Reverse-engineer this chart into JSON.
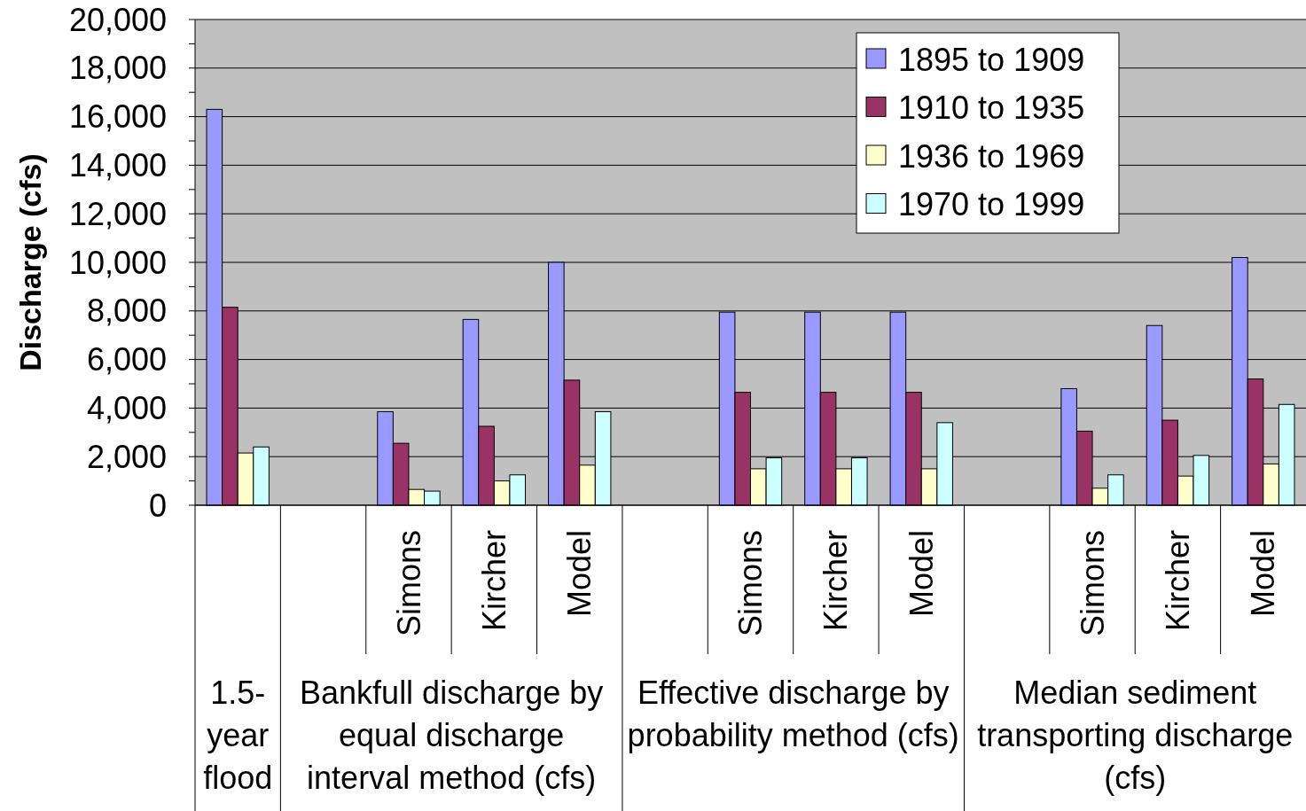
{
  "chart_data": {
    "type": "bar",
    "ylabel": "Discharge (cfs)",
    "categories": [
      null,
      null,
      "Simons",
      "Kircher",
      "Model",
      null,
      "Simons",
      "Kircher",
      "Model",
      null,
      "Simons",
      "Kircher",
      "Model"
    ],
    "annotations": [
      "1.5-year flood",
      "Bankfull discharge by equal discharge interval method (cfs)",
      "Effective discharge by probability method (cfs)",
      "Median sediment transporting discharge (cfs)"
    ],
    "series": [
      {
        "name": "1895 to 1909",
        "color": "#9999ff",
        "values": [
          16300,
          null,
          3850,
          7650,
          10000,
          null,
          7950,
          7950,
          7950,
          null,
          4800,
          7400,
          10200
        ]
      },
      {
        "name": "1910 to 1935",
        "color": "#993366",
        "values": [
          8150,
          null,
          2550,
          3250,
          5150,
          null,
          4650,
          4650,
          4650,
          null,
          3050,
          3500,
          5200
        ]
      },
      {
        "name": "1936 to 1969",
        "color": "#ffffcc",
        "values": [
          2150,
          null,
          650,
          1000,
          1650,
          null,
          1500,
          1500,
          1500,
          null,
          700,
          1200,
          1700
        ]
      },
      {
        "name": "1970 to 1999",
        "color": "#ccffff",
        "values": [
          2400,
          null,
          580,
          1250,
          3850,
          null,
          1950,
          1950,
          3400,
          null,
          1250,
          2050,
          4150
        ]
      }
    ],
    "ylim": [
      0,
      20000
    ],
    "yticks": [
      {
        "value": 0,
        "label": "0"
      },
      {
        "value": 2000,
        "label": "2,000"
      },
      {
        "value": 4000,
        "label": "4,000"
      },
      {
        "value": 6000,
        "label": "6,000"
      },
      {
        "value": 8000,
        "label": "8,000"
      },
      {
        "value": 10000,
        "label": "10,000"
      },
      {
        "value": 12000,
        "label": "12,000"
      },
      {
        "value": 14000,
        "label": "14,000"
      },
      {
        "value": 16000,
        "label": "16,000"
      },
      {
        "value": 18000,
        "label": "18,000"
      },
      {
        "value": 20000,
        "label": "20,000"
      }
    ],
    "grid": "y",
    "legend": "top right"
  }
}
